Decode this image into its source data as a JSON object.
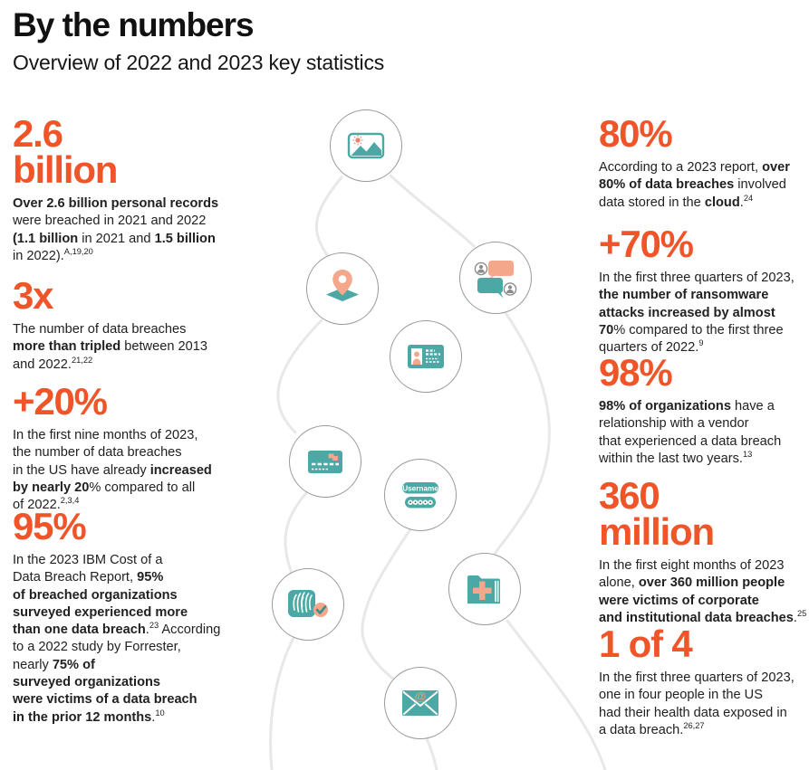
{
  "header": {
    "title": "By the numbers",
    "subtitle": "Overview of 2022 and 2023 key statistics"
  },
  "colors": {
    "accent_orange": "#F0552A",
    "teal": "#4CA8A4",
    "coral": "#F5A78B",
    "text": "#232020",
    "circle_border": "#9A9A9A",
    "thread_gray": "#E8E8E8"
  },
  "left_stats": [
    {
      "id": "2-6-billion",
      "headline_lines": [
        "2.6",
        "billion"
      ],
      "body": [
        {
          "t": "Over 2.6 billion personal records",
          "b": true
        },
        {
          "br": true
        },
        {
          "t": "were breached in 2021 and 2022"
        },
        {
          "br": true
        },
        {
          "t": "(1.1 billion",
          "b": true
        },
        {
          "t": " in 2021 and "
        },
        {
          "t": "1.5 billion",
          "b": true
        },
        {
          "br": true
        },
        {
          "t": "in 2022)."
        },
        {
          "t": "A,19,20",
          "sup": true
        }
      ]
    },
    {
      "id": "3x",
      "headline_lines": [
        "3x"
      ],
      "body": [
        {
          "t": "The number of data breaches"
        },
        {
          "br": true
        },
        {
          "t": "more than tripled",
          "b": true
        },
        {
          "t": " between 2013"
        },
        {
          "br": true
        },
        {
          "t": "and 2022."
        },
        {
          "t": "21,22",
          "sup": true
        }
      ]
    },
    {
      "id": "plus-20-percent",
      "headline_lines": [
        "+20%"
      ],
      "body": [
        {
          "t": "In the first nine months of 2023,"
        },
        {
          "br": true
        },
        {
          "t": "the number of data breaches"
        },
        {
          "br": true
        },
        {
          "t": "in the US have already "
        },
        {
          "t": "increased",
          "b": true
        },
        {
          "br": true
        },
        {
          "t": "by nearly 20",
          "b": true
        },
        {
          "t": "% compared to all"
        },
        {
          "br": true
        },
        {
          "t": "of 2022."
        },
        {
          "t": "2,3,4",
          "sup": true
        }
      ]
    },
    {
      "id": "95-percent",
      "headline_lines": [
        "95%"
      ],
      "body": [
        {
          "t": "In the 2023 IBM Cost of a"
        },
        {
          "br": true
        },
        {
          "t": "Data Breach Report, "
        },
        {
          "t": "95%",
          "b": true
        },
        {
          "br": true
        },
        {
          "t": "of breached organizations",
          "b": true
        },
        {
          "br": true
        },
        {
          "t": "surveyed experienced more",
          "b": true
        },
        {
          "br": true
        },
        {
          "t": "than one data breach",
          "b": true
        },
        {
          "t": "."
        },
        {
          "t": "23",
          "sup": true
        },
        {
          "t": " According"
        },
        {
          "br": true
        },
        {
          "t": "to a 2022 study by Forrester,"
        },
        {
          "br": true
        },
        {
          "t": "nearly "
        },
        {
          "t": "75% of",
          "b": true
        },
        {
          "br": true
        },
        {
          "t": "surveyed organizations",
          "b": true
        },
        {
          "br": true
        },
        {
          "t": "were victims of a data breach",
          "b": true
        },
        {
          "br": true
        },
        {
          "t": "in the prior 12 months",
          "b": true
        },
        {
          "t": "."
        },
        {
          "t": "10",
          "sup": true
        }
      ]
    }
  ],
  "right_stats": [
    {
      "id": "80-percent",
      "headline_lines": [
        "80%"
      ],
      "body": [
        {
          "t": "According to a 2023 report, "
        },
        {
          "t": "over",
          "b": true
        },
        {
          "br": true
        },
        {
          "t": "80% of data breaches",
          "b": true
        },
        {
          "t": " involved"
        },
        {
          "br": true
        },
        {
          "t": "data stored in the "
        },
        {
          "t": "cloud",
          "b": true
        },
        {
          "t": "."
        },
        {
          "t": "24",
          "sup": true
        }
      ]
    },
    {
      "id": "plus-70-percent",
      "headline_lines": [
        "+70%"
      ],
      "body": [
        {
          "t": "In the first three quarters of 2023,"
        },
        {
          "br": true
        },
        {
          "t": "the number of ransomware",
          "b": true
        },
        {
          "br": true
        },
        {
          "t": "attacks increased by almost",
          "b": true
        },
        {
          "br": true
        },
        {
          "t": "70",
          "b": true
        },
        {
          "t": "% compared to the first three"
        },
        {
          "br": true
        },
        {
          "t": "quarters of 2022."
        },
        {
          "t": "9",
          "sup": true
        }
      ]
    },
    {
      "id": "98-percent",
      "headline_lines": [
        "98%"
      ],
      "body": [
        {
          "t": "98% of organizations",
          "b": true
        },
        {
          "t": " have a"
        },
        {
          "br": true
        },
        {
          "t": "relationship with a vendor"
        },
        {
          "br": true
        },
        {
          "t": "that experienced a data breach"
        },
        {
          "br": true
        },
        {
          "t": "within the last two years."
        },
        {
          "t": "13",
          "sup": true
        }
      ]
    },
    {
      "id": "360-million",
      "headline_lines": [
        "360",
        "million"
      ],
      "body": [
        {
          "t": "In the first eight months of 2023"
        },
        {
          "br": true
        },
        {
          "t": "alone, "
        },
        {
          "t": "over 360 million people",
          "b": true
        },
        {
          "br": true
        },
        {
          "t": "were victims of corporate",
          "b": true
        },
        {
          "br": true
        },
        {
          "t": "and institutional data breaches",
          "b": true
        },
        {
          "t": "."
        },
        {
          "t": "25",
          "sup": true
        }
      ]
    },
    {
      "id": "1-of-4",
      "headline_lines": [
        "1 of 4"
      ],
      "body": [
        {
          "t": "In the first three quarters of 2023,"
        },
        {
          "br": true
        },
        {
          "t": "one in four people in the US"
        },
        {
          "br": true
        },
        {
          "t": "had their health data exposed in"
        },
        {
          "br": true
        },
        {
          "t": "a data breach."
        },
        {
          "t": "26,27",
          "sup": true
        }
      ]
    }
  ],
  "icons": {
    "username_label": "Username",
    "email_at": "@",
    "names": [
      "image-icon",
      "map-pin-icon",
      "chat-avatars-icon",
      "id-card-icon",
      "credit-card-icon",
      "username-password-icon",
      "medical-folder-icon",
      "fingerprint-check-icon",
      "email-icon"
    ]
  }
}
